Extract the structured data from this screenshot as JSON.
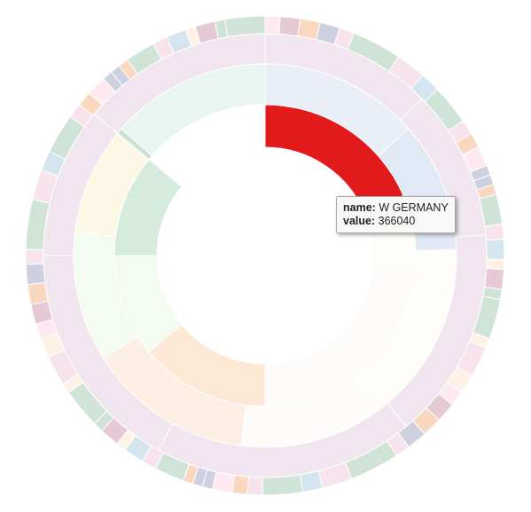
{
  "chart_data": {
    "type": "sunburst",
    "colors": {
      "highlight": "#e31a1c",
      "outer_palette": [
        "#cfe4d6",
        "#cdd1df",
        "#e5c9d5",
        "#f6e3ec",
        "#fde9ef",
        "#fad8c0",
        "#d4e5f0",
        "#fef2e6"
      ],
      "ring2_base": "#f1e6f0"
    },
    "highlighted_node": {
      "name": "W GERMANY",
      "value": 366040
    },
    "inner_ring": [
      {
        "value": 0.185,
        "color": "#e31a1c"
      },
      {
        "value": 0.075,
        "color": "#fefdf9"
      },
      {
        "value": 0.24,
        "color": "#fdfcfa"
      },
      {
        "value": 0.14,
        "color": "#fde8d6"
      },
      {
        "value": 0.11,
        "color": "#f4fbf1"
      },
      {
        "value": 0.11,
        "color": "#d5ebdd"
      },
      {
        "value": 0.005,
        "color": "#ffffff"
      },
      {
        "value": 0.135,
        "color": "#ffffff"
      }
    ],
    "middle_ring": [
      {
        "value": 0.135,
        "color": "#e9eef7"
      },
      {
        "value": 0.11,
        "color": "#e1eaf4"
      },
      {
        "value": 0.075,
        "color": "#fefdf9"
      },
      {
        "value": 0.08,
        "color": "#fefdf9"
      },
      {
        "value": 0.12,
        "color": "#fdfcfa"
      },
      {
        "value": 0.14,
        "color": "#fdefe3"
      },
      {
        "value": 0.11,
        "color": "#f4fbf1"
      },
      {
        "value": 0.09,
        "color": "#fdf8e6"
      },
      {
        "value": 0.005,
        "color": "#c9e2d4"
      },
      {
        "value": 0.135,
        "color": "#e9f5f1"
      }
    ],
    "outer_ring": [
      {
        "value": 0.125,
        "color": "#f1e6f0"
      },
      {
        "value": 0.11,
        "color": "#f1e6f0"
      },
      {
        "value": 0.155,
        "color": "#f1e6f0"
      },
      {
        "value": 0.19,
        "color": "#f1e6f0"
      },
      {
        "value": 0.17,
        "color": "#f1e6f0"
      },
      {
        "value": 0.11,
        "color": "#f1e6f0"
      },
      {
        "value": 0.14,
        "color": "#f1e6f0"
      }
    ]
  },
  "tooltip": {
    "name_label": "name:",
    "name_value": "W GERMANY",
    "value_label": "value:",
    "value_value": "366040"
  }
}
